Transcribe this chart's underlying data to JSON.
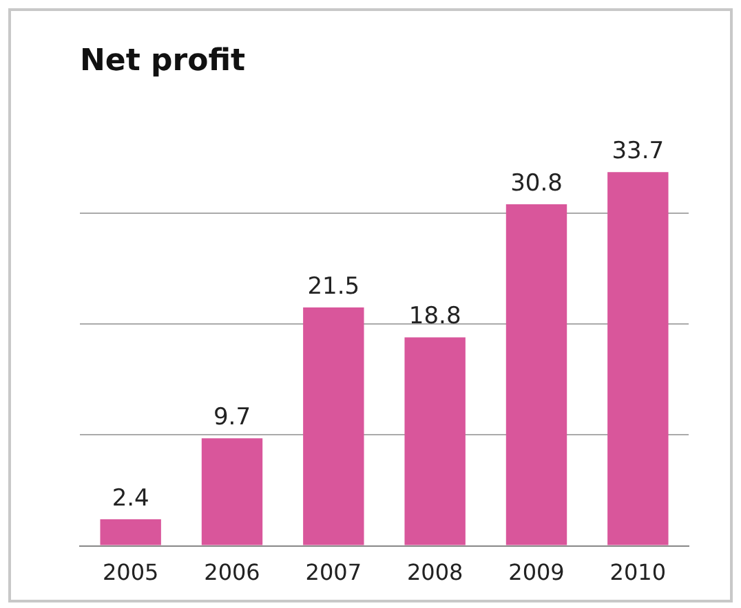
{
  "chart_data": {
    "type": "bar",
    "title": "Net profit",
    "categories": [
      "2005",
      "2006",
      "2007",
      "2008",
      "2009",
      "2010"
    ],
    "values": [
      2.4,
      9.7,
      21.5,
      18.8,
      30.8,
      33.7
    ],
    "color": "#d9569b",
    "yticks": [
      {
        "value": 0,
        "label": null
      },
      {
        "value": 10,
        "label": null
      },
      {
        "value": 20,
        "label": null
      },
      {
        "value": 30,
        "label": null
      }
    ],
    "grid": "y",
    "tick_labels": "x",
    "data_labels": true
  }
}
